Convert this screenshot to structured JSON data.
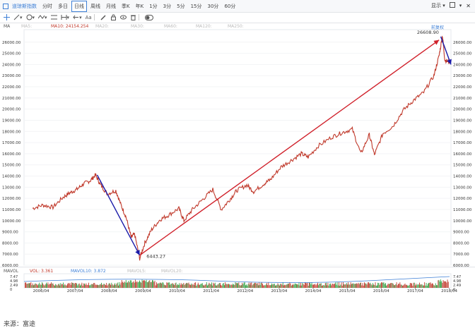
{
  "toolbar": {
    "index_name": "道琼斯指数",
    "periods": [
      "分时",
      "多日",
      "日线",
      "周线",
      "月线",
      "季K",
      "年K",
      "1分",
      "3分",
      "5分",
      "15分",
      "30分",
      "60分"
    ],
    "active_period": "日线",
    "display_label": "显示",
    "extra_tools_label": "Aa"
  },
  "main_indicators": {
    "ma_label": "MA",
    "ma5_label": "MA5:",
    "ma10_label": "MA10: 24154.254",
    "ma20_label": "MA20:",
    "ma30_label": "MA30:",
    "ma60_label": "MA60:",
    "ma120_label": "MA120:",
    "ma250_label": "MA250:",
    "recovery_label": "前复权"
  },
  "volume_indicators": {
    "mavol_label": "MAVOL",
    "vol_label": "VOL: 3.361",
    "mavol5_label": "MAVOL5:",
    "mavol10_label": "MAVOL10: 3.872",
    "mavol20_label": "MAVOL20:"
  },
  "annotations": {
    "high_label": "26608.90",
    "low_label": "6443.27"
  },
  "caption": "来源：富途",
  "chart_data": {
    "type": "line",
    "title": "",
    "x": [
      "2006/04",
      "2007/04",
      "2008/04",
      "2009/04",
      "2010/04",
      "2011/04",
      "2012/04",
      "2013/04",
      "2014/04",
      "2015/04",
      "2016/04",
      "2017/04",
      "2018/04"
    ],
    "y_axis_ticks": [
      26000,
      25000,
      24000,
      23000,
      22000,
      21000,
      20000,
      19000,
      18000,
      17000,
      16000,
      15000,
      14000,
      13000,
      12000,
      11000,
      10000,
      9000,
      8000,
      7000,
      6000
    ],
    "y_axis_tick_labels": [
      "26000.00",
      "25000.00",
      "24000.00",
      "23000.00",
      "22000.00",
      "21000.00",
      "20000.00",
      "19000.00",
      "18000.00",
      "17000.00",
      "16000.00",
      "15000.00",
      "14000.00",
      "13000.00",
      "12000.00",
      "11000.00",
      "10000.00",
      "9000.00",
      "8000.00",
      "7000.00",
      "6000.00"
    ],
    "ylim": [
      6000,
      27000
    ],
    "series": [
      {
        "values": [
          [
            2006.0,
            11100
          ],
          [
            2006.3,
            11400
          ],
          [
            2006.6,
            11200
          ],
          [
            2006.9,
            12100
          ],
          [
            2007.1,
            12500
          ],
          [
            2007.3,
            12800
          ],
          [
            2007.5,
            13300
          ],
          [
            2007.7,
            13600
          ],
          [
            2007.85,
            14100
          ],
          [
            2008.0,
            13200
          ],
          [
            2008.2,
            12400
          ],
          [
            2008.45,
            12700
          ],
          [
            2008.6,
            11400
          ],
          [
            2008.75,
            10300
          ],
          [
            2008.9,
            8500
          ],
          [
            2009.0,
            8800
          ],
          [
            2009.15,
            6600
          ],
          [
            2009.3,
            8000
          ],
          [
            2009.5,
            9200
          ],
          [
            2009.75,
            10100
          ],
          [
            2010.0,
            10500
          ],
          [
            2010.3,
            11100
          ],
          [
            2010.45,
            10000
          ],
          [
            2010.7,
            11000
          ],
          [
            2011.0,
            11900
          ],
          [
            2011.3,
            12800
          ],
          [
            2011.55,
            11000
          ],
          [
            2011.8,
            11900
          ],
          [
            2012.0,
            12700
          ],
          [
            2012.3,
            13200
          ],
          [
            2012.5,
            12600
          ],
          [
            2012.8,
            13300
          ],
          [
            2013.0,
            13700
          ],
          [
            2013.3,
            14800
          ],
          [
            2013.6,
            15400
          ],
          [
            2013.9,
            16000
          ],
          [
            2014.1,
            15700
          ],
          [
            2014.4,
            16700
          ],
          [
            2014.8,
            17500
          ],
          [
            2015.1,
            17900
          ],
          [
            2015.4,
            18200
          ],
          [
            2015.65,
            16000
          ],
          [
            2015.9,
            17700
          ],
          [
            2016.05,
            15900
          ],
          [
            2016.3,
            17800
          ],
          [
            2016.6,
            18500
          ],
          [
            2016.9,
            19900
          ],
          [
            2017.2,
            20800
          ],
          [
            2017.5,
            21500
          ],
          [
            2017.8,
            23000
          ],
          [
            2017.95,
            24800
          ],
          [
            2018.05,
            26600
          ],
          [
            2018.12,
            24400
          ],
          [
            2018.25,
            24200
          ]
        ]
      },
      {
        "values": [
          [
            2007.9,
            14100
          ],
          [
            2009.15,
            6900
          ]
        ]
      },
      {
        "values": [
          [
            2009.15,
            6900
          ],
          [
            2017.95,
            26200
          ]
        ]
      },
      {
        "values": [
          [
            2018.0,
            26500
          ],
          [
            2018.3,
            24000
          ]
        ]
      }
    ],
    "volume": {
      "ylabels": [
        "7.47",
        "4.98",
        "2.49",
        "0"
      ],
      "ylim": [
        0,
        7.47
      ]
    }
  }
}
